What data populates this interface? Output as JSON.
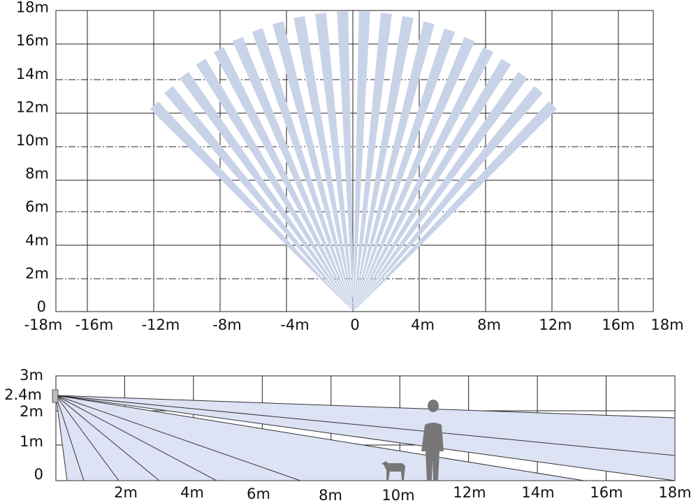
{
  "top_view": {
    "y_labels": [
      "0",
      "2m",
      "4m",
      "6m",
      "8m",
      "10m",
      "12m",
      "14m",
      "16m",
      "18m"
    ],
    "x_labels": [
      "-18m",
      "-16m",
      "-12m",
      "-8m",
      "-4m",
      "0",
      "4m",
      "8m",
      "12m",
      "16m",
      "18m"
    ]
  },
  "side_view": {
    "y_labels": [
      "3m",
      "2.4m",
      "2m",
      "1m",
      "0"
    ],
    "x_labels": [
      "2m",
      "4m",
      "6m",
      "8m",
      "10m",
      "12m",
      "14m",
      "16m",
      "18m"
    ]
  }
}
